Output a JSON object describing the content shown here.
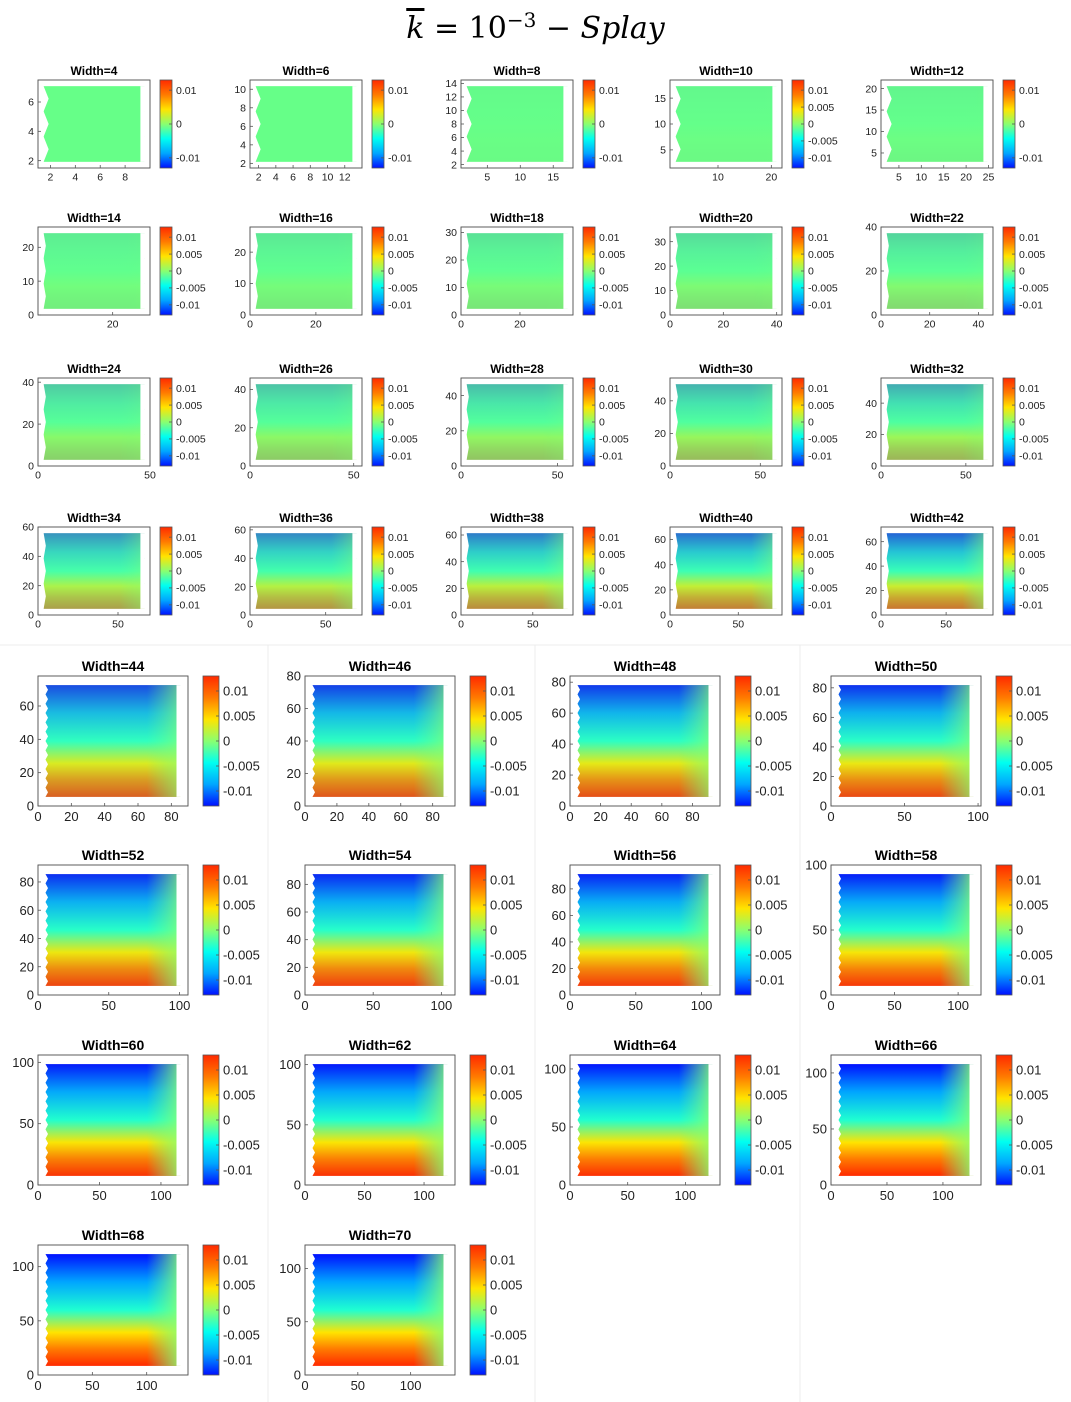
{
  "title": {
    "k_symbol": "k",
    "equals": "= 10",
    "exponent": "−3",
    "suffix": " − Splay"
  },
  "colors": {
    "colormap": [
      "#0010ff",
      "#00a6ff",
      "#00fff0",
      "#8aff70",
      "#ffe400",
      "#ff7a00",
      "#ff2a00"
    ]
  },
  "chart_data": {
    "type": "heatmap",
    "colorbar_range": [
      -0.013,
      0.013
    ],
    "colormap": "jet",
    "panels": [
      {
        "title": "Width=4",
        "xlim": [
          1,
          10
        ],
        "ylim": [
          1.5,
          7.5
        ],
        "xticks": [
          2,
          4,
          6,
          8
        ],
        "yticks": [
          2,
          4,
          6
        ],
        "cbticks": [
          0.01,
          0,
          -0.01
        ],
        "intensity": 0.0
      },
      {
        "title": "Width=6",
        "xlim": [
          1,
          14
        ],
        "ylim": [
          1.5,
          11
        ],
        "xticks": [
          2,
          4,
          6,
          8,
          10,
          12
        ],
        "yticks": [
          2,
          4,
          6,
          8,
          10
        ],
        "cbticks": [
          0.01,
          0,
          -0.01
        ],
        "intensity": 0.0
      },
      {
        "title": "Width=8",
        "xlim": [
          1,
          18
        ],
        "ylim": [
          1.5,
          14.5
        ],
        "xticks": [
          5,
          10,
          15
        ],
        "yticks": [
          2,
          4,
          6,
          8,
          10,
          12,
          14
        ],
        "cbticks": [
          0.01,
          0,
          -0.01
        ],
        "intensity": 0.02
      },
      {
        "title": "Width=10",
        "xlim": [
          1,
          22
        ],
        "ylim": [
          1.5,
          18.5
        ],
        "xticks": [
          10,
          20
        ],
        "yticks": [
          5,
          10,
          15
        ],
        "cbticks": [
          0.01,
          0.005,
          0,
          -0.005,
          -0.01
        ],
        "intensity": 0.03
      },
      {
        "title": "Width=12",
        "xlim": [
          1,
          26
        ],
        "ylim": [
          1.5,
          22
        ],
        "xticks": [
          5,
          10,
          15,
          20,
          25
        ],
        "yticks": [
          5,
          10,
          15,
          20
        ],
        "cbticks": [
          0.01,
          0,
          -0.01
        ],
        "intensity": 0.04
      },
      {
        "title": "Width=14",
        "xlim": [
          0,
          30
        ],
        "ylim": [
          0,
          26
        ],
        "xticks": [
          20
        ],
        "yticks": [
          0,
          10,
          20
        ],
        "cbticks": [
          0.01,
          0.005,
          0,
          -0.005,
          -0.01
        ],
        "intensity": 0.08
      },
      {
        "title": "Width=16",
        "xlim": [
          0,
          34
        ],
        "ylim": [
          0,
          28
        ],
        "xticks": [
          0,
          20
        ],
        "yticks": [
          0,
          10,
          20
        ],
        "cbticks": [
          0.01,
          0.005,
          0,
          -0.005,
          -0.01
        ],
        "intensity": 0.1
      },
      {
        "title": "Width=18",
        "xlim": [
          0,
          38
        ],
        "ylim": [
          0,
          32
        ],
        "xticks": [
          0,
          20
        ],
        "yticks": [
          0,
          10,
          20,
          30
        ],
        "cbticks": [
          0.01,
          0.005,
          0,
          -0.005,
          -0.01
        ],
        "intensity": 0.12
      },
      {
        "title": "Width=20",
        "xlim": [
          0,
          42
        ],
        "ylim": [
          0,
          36
        ],
        "xticks": [
          0,
          20,
          40
        ],
        "yticks": [
          0,
          10,
          20,
          30
        ],
        "cbticks": [
          0.01,
          0.005,
          0,
          -0.005,
          -0.01
        ],
        "intensity": 0.15
      },
      {
        "title": "Width=22",
        "xlim": [
          0,
          46
        ],
        "ylim": [
          0,
          40
        ],
        "xticks": [
          0,
          20,
          40
        ],
        "yticks": [
          0,
          20,
          40
        ],
        "cbticks": [
          0.01,
          0.005,
          0,
          -0.005,
          -0.01
        ],
        "intensity": 0.18
      },
      {
        "title": "Width=24",
        "xlim": [
          0,
          50
        ],
        "ylim": [
          0,
          42
        ],
        "xticks": [
          0,
          50
        ],
        "yticks": [
          0,
          20,
          40
        ],
        "cbticks": [
          0.01,
          0.005,
          0,
          -0.005,
          -0.01
        ],
        "intensity": 0.22
      },
      {
        "title": "Width=26",
        "xlim": [
          0,
          54
        ],
        "ylim": [
          0,
          46
        ],
        "xticks": [
          0,
          50
        ],
        "yticks": [
          0,
          20,
          40
        ],
        "cbticks": [
          0.01,
          0.005,
          0,
          -0.005,
          -0.01
        ],
        "intensity": 0.25
      },
      {
        "title": "Width=28",
        "xlim": [
          0,
          58
        ],
        "ylim": [
          0,
          50
        ],
        "xticks": [
          0,
          50
        ],
        "yticks": [
          0,
          20,
          40
        ],
        "cbticks": [
          0.01,
          0.005,
          0,
          -0.005,
          -0.01
        ],
        "intensity": 0.28
      },
      {
        "title": "Width=30",
        "xlim": [
          0,
          62
        ],
        "ylim": [
          0,
          54
        ],
        "xticks": [
          0,
          50
        ],
        "yticks": [
          0,
          20,
          40
        ],
        "cbticks": [
          0.01,
          0.005,
          0,
          -0.005,
          -0.01
        ],
        "intensity": 0.32
      },
      {
        "title": "Width=32",
        "xlim": [
          0,
          66
        ],
        "ylim": [
          0,
          56
        ],
        "xticks": [
          0,
          50
        ],
        "yticks": [
          0,
          20,
          40
        ],
        "cbticks": [
          0.01,
          0.005,
          0,
          -0.005,
          -0.01
        ],
        "intensity": 0.35
      },
      {
        "title": "Width=34",
        "xlim": [
          0,
          70
        ],
        "ylim": [
          0,
          60
        ],
        "xticks": [
          0,
          50
        ],
        "yticks": [
          0,
          20,
          40,
          60
        ],
        "cbticks": [
          0.01,
          0.005,
          0,
          -0.005,
          -0.01
        ],
        "intensity": 0.45
      },
      {
        "title": "Width=36",
        "xlim": [
          0,
          74
        ],
        "ylim": [
          0,
          62
        ],
        "xticks": [
          0,
          50
        ],
        "yticks": [
          0,
          20,
          40,
          60
        ],
        "cbticks": [
          0.01,
          0.005,
          0,
          -0.005,
          -0.01
        ],
        "intensity": 0.5
      },
      {
        "title": "Width=38",
        "xlim": [
          0,
          78
        ],
        "ylim": [
          0,
          66
        ],
        "xticks": [
          0,
          50
        ],
        "yticks": [
          0,
          20,
          40,
          60
        ],
        "cbticks": [
          0.01,
          0.005,
          0,
          -0.005,
          -0.01
        ],
        "intensity": 0.55
      },
      {
        "title": "Width=40",
        "xlim": [
          0,
          82
        ],
        "ylim": [
          0,
          70
        ],
        "xticks": [
          0,
          50
        ],
        "yticks": [
          0,
          20,
          40,
          60
        ],
        "cbticks": [
          0.01,
          0.005,
          0,
          -0.005,
          -0.01
        ],
        "intensity": 0.6
      },
      {
        "title": "Width=42",
        "xlim": [
          0,
          86
        ],
        "ylim": [
          0,
          72
        ],
        "xticks": [
          0,
          50
        ],
        "yticks": [
          0,
          20,
          40,
          60
        ],
        "cbticks": [
          0.01,
          0.005,
          0,
          -0.005,
          -0.01
        ],
        "intensity": 0.65
      },
      {
        "title": "Width=44",
        "xlim": [
          0,
          90
        ],
        "ylim": [
          0,
          78
        ],
        "xticks": [
          0,
          20,
          40,
          60,
          80
        ],
        "yticks": [
          0,
          20,
          40,
          60
        ],
        "cbticks": [
          0.01,
          0.005,
          0,
          -0.005,
          -0.01
        ],
        "intensity": 0.75
      },
      {
        "title": "Width=46",
        "xlim": [
          0,
          94
        ],
        "ylim": [
          0,
          80
        ],
        "xticks": [
          0,
          20,
          40,
          60,
          80
        ],
        "yticks": [
          0,
          20,
          40,
          60,
          80
        ],
        "cbticks": [
          0.01,
          0.005,
          0,
          -0.005,
          -0.01
        ],
        "intensity": 0.8
      },
      {
        "title": "Width=48",
        "xlim": [
          0,
          98
        ],
        "ylim": [
          0,
          84
        ],
        "xticks": [
          0,
          20,
          40,
          60,
          80
        ],
        "yticks": [
          0,
          20,
          40,
          60,
          80
        ],
        "cbticks": [
          0.01,
          0.005,
          0,
          -0.005,
          -0.01
        ],
        "intensity": 0.83
      },
      {
        "title": "Width=50",
        "xlim": [
          0,
          102
        ],
        "ylim": [
          0,
          88
        ],
        "xticks": [
          0,
          50,
          100
        ],
        "yticks": [
          0,
          20,
          40,
          60,
          80
        ],
        "cbticks": [
          0.01,
          0.005,
          0,
          -0.005,
          -0.01
        ],
        "intensity": 0.86
      },
      {
        "title": "Width=52",
        "xlim": [
          0,
          106
        ],
        "ylim": [
          0,
          92
        ],
        "xticks": [
          0,
          50,
          100
        ],
        "yticks": [
          0,
          20,
          40,
          60,
          80
        ],
        "cbticks": [
          0.01,
          0.005,
          0,
          -0.005,
          -0.01
        ],
        "intensity": 0.88
      },
      {
        "title": "Width=54",
        "xlim": [
          0,
          110
        ],
        "ylim": [
          0,
          94
        ],
        "xticks": [
          0,
          50,
          100
        ],
        "yticks": [
          0,
          20,
          40,
          60,
          80
        ],
        "cbticks": [
          0.01,
          0.005,
          0,
          -0.005,
          -0.01
        ],
        "intensity": 0.9
      },
      {
        "title": "Width=56",
        "xlim": [
          0,
          114
        ],
        "ylim": [
          0,
          98
        ],
        "xticks": [
          0,
          50,
          100
        ],
        "yticks": [
          0,
          20,
          40,
          60,
          80
        ],
        "cbticks": [
          0.01,
          0.005,
          0,
          -0.005,
          -0.01
        ],
        "intensity": 0.92
      },
      {
        "title": "Width=58",
        "xlim": [
          0,
          118
        ],
        "ylim": [
          0,
          100
        ],
        "xticks": [
          0,
          50,
          100
        ],
        "yticks": [
          0,
          50,
          100
        ],
        "cbticks": [
          0.01,
          0.005,
          0,
          -0.005,
          -0.01
        ],
        "intensity": 0.94
      },
      {
        "title": "Width=60",
        "xlim": [
          0,
          122
        ],
        "ylim": [
          0,
          106
        ],
        "xticks": [
          0,
          50,
          100
        ],
        "yticks": [
          0,
          50,
          100
        ],
        "cbticks": [
          0.01,
          0.005,
          0,
          -0.005,
          -0.01
        ],
        "intensity": 0.96
      },
      {
        "title": "Width=62",
        "xlim": [
          0,
          126
        ],
        "ylim": [
          0,
          108
        ],
        "xticks": [
          0,
          50,
          100
        ],
        "yticks": [
          0,
          50,
          100
        ],
        "cbticks": [
          0.01,
          0.005,
          0,
          -0.005,
          -0.01
        ],
        "intensity": 0.97
      },
      {
        "title": "Width=64",
        "xlim": [
          0,
          130
        ],
        "ylim": [
          0,
          112
        ],
        "xticks": [
          0,
          50,
          100
        ],
        "yticks": [
          0,
          50,
          100
        ],
        "cbticks": [
          0.01,
          0.005,
          0,
          -0.005,
          -0.01
        ],
        "intensity": 0.98
      },
      {
        "title": "Width=66",
        "xlim": [
          0,
          134
        ],
        "ylim": [
          0,
          116
        ],
        "xticks": [
          0,
          50,
          100
        ],
        "yticks": [
          0,
          50,
          100
        ],
        "cbticks": [
          0.01,
          0.005,
          0,
          -0.005,
          -0.01
        ],
        "intensity": 1.0
      },
      {
        "title": "Width=68",
        "xlim": [
          0,
          138
        ],
        "ylim": [
          0,
          120
        ],
        "xticks": [
          0,
          50,
          100
        ],
        "yticks": [
          0,
          50,
          100
        ],
        "cbticks": [
          0.01,
          0.005,
          0,
          -0.005,
          -0.01
        ],
        "intensity": 1.0
      },
      {
        "title": "Width=70",
        "xlim": [
          0,
          142
        ],
        "ylim": [
          0,
          122
        ],
        "xticks": [
          0,
          50,
          100
        ],
        "yticks": [
          0,
          50,
          100
        ],
        "cbticks": [
          0.01,
          0.005,
          0,
          -0.005,
          -0.01
        ],
        "intensity": 1.0
      }
    ]
  }
}
